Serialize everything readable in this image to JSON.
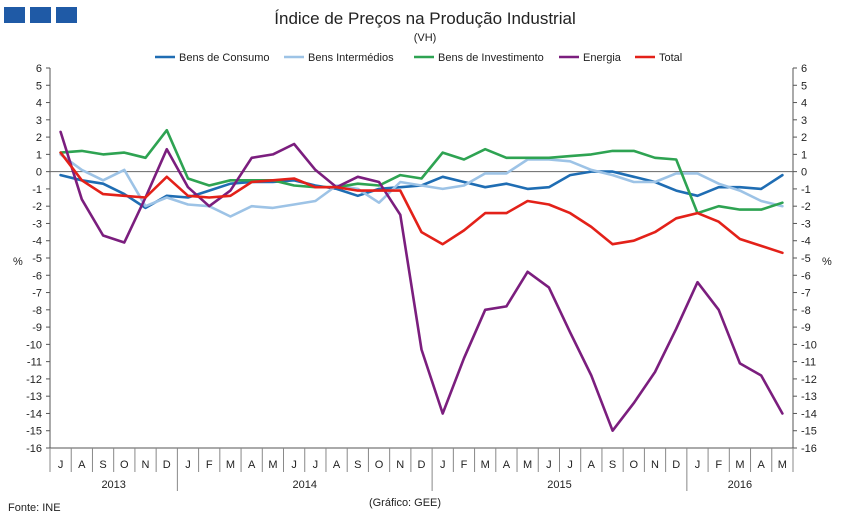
{
  "brand": {
    "squares_color": "#1f5aa6",
    "squares_count": 3
  },
  "footer": {
    "source": "Fonte: INE",
    "credit": "(Gráfico: GEE)"
  },
  "chart_data": {
    "type": "line",
    "title": "Índice de Preços na Produção Industrial",
    "subtitle": "(VH)",
    "ylabel_left": "%",
    "ylabel_right": "%",
    "ylim": [
      -16,
      6
    ],
    "yticks": [
      6,
      5,
      4,
      3,
      2,
      1,
      0,
      -1,
      -2,
      -3,
      -4,
      -5,
      -6,
      -7,
      -8,
      -9,
      -10,
      -11,
      -12,
      -13,
      -14,
      -15,
      -16
    ],
    "months": [
      "J",
      "A",
      "S",
      "O",
      "N",
      "D",
      "J",
      "F",
      "M",
      "A",
      "M",
      "J",
      "J",
      "A",
      "S",
      "O",
      "N",
      "D",
      "J",
      "F",
      "M",
      "A",
      "M",
      "J",
      "J",
      "A",
      "S",
      "O",
      "N",
      "D",
      "J",
      "F",
      "M",
      "A",
      "M"
    ],
    "years": [
      {
        "label": "2013",
        "start": 0,
        "end": 5
      },
      {
        "label": "2014",
        "start": 6,
        "end": 17
      },
      {
        "label": "2015",
        "start": 18,
        "end": 29
      },
      {
        "label": "2016",
        "start": 30,
        "end": 34
      }
    ],
    "series": [
      {
        "name": "Bens de Consumo",
        "color": "#1f6db3",
        "values": [
          -0.2,
          -0.5,
          -0.7,
          -1.3,
          -2.1,
          -1.4,
          -1.5,
          -1.1,
          -0.7,
          -0.6,
          -0.6,
          -0.5,
          -0.8,
          -1.0,
          -1.4,
          -1.0,
          -0.9,
          -0.8,
          -0.3,
          -0.6,
          -0.9,
          -0.7,
          -1.0,
          -0.9,
          -0.2,
          0.0,
          0.0,
          -0.3,
          -0.6,
          -1.1,
          -1.4,
          -0.9,
          -0.9,
          -1.0,
          -0.2
        ]
      },
      {
        "name": "Bens Intermédios",
        "color": "#9dc3e6",
        "values": [
          1.0,
          0.1,
          -0.5,
          0.1,
          -2.0,
          -1.5,
          -1.9,
          -2.0,
          -2.6,
          -2.0,
          -2.1,
          -1.9,
          -1.7,
          -0.8,
          -1.0,
          -1.8,
          -0.6,
          -0.8,
          -1.0,
          -0.8,
          -0.1,
          -0.1,
          0.7,
          0.7,
          0.6,
          0.1,
          -0.2,
          -0.6,
          -0.6,
          -0.1,
          -0.1,
          -0.7,
          -1.1,
          -1.7,
          -2.0
        ]
      },
      {
        "name": "Bens de Investimento",
        "color": "#2ea352",
        "values": [
          1.1,
          1.2,
          1.0,
          1.1,
          0.8,
          2.4,
          -0.4,
          -0.8,
          -0.5,
          -0.5,
          -0.5,
          -0.8,
          -0.9,
          -0.9,
          -0.7,
          -0.8,
          -0.2,
          -0.4,
          1.1,
          0.7,
          1.3,
          0.8,
          0.8,
          0.8,
          0.9,
          1.0,
          1.2,
          1.2,
          0.8,
          0.7,
          -2.4,
          -2.0,
          -2.2,
          -2.2,
          -1.8
        ]
      },
      {
        "name": "Energia",
        "color": "#7b1e7e",
        "values": [
          2.3,
          -1.6,
          -3.7,
          -4.1,
          -1.5,
          1.3,
          -0.9,
          -2.0,
          -1.1,
          0.8,
          1.0,
          1.6,
          0.1,
          -0.9,
          -0.3,
          -0.6,
          -2.5,
          -10.3,
          -14.0,
          -10.8,
          -8.0,
          -7.8,
          -5.8,
          -6.7,
          -9.3,
          -11.8,
          -15.0,
          -13.4,
          -11.6,
          -9.1,
          -6.4,
          -8.0,
          -11.1,
          -11.8,
          -14.0
        ]
      },
      {
        "name": "Total",
        "color": "#e32119",
        "values": [
          1.1,
          -0.5,
          -1.3,
          -1.4,
          -1.5,
          -0.3,
          -1.4,
          -1.5,
          -1.4,
          -0.6,
          -0.5,
          -0.4,
          -0.9,
          -0.9,
          -1.1,
          -1.1,
          -1.1,
          -3.5,
          -4.2,
          -3.4,
          -2.4,
          -2.4,
          -1.7,
          -1.9,
          -2.4,
          -3.2,
          -4.2,
          -4.0,
          -3.5,
          -2.7,
          -2.4,
          -2.9,
          -3.9,
          -4.3,
          -4.7
        ]
      }
    ]
  }
}
